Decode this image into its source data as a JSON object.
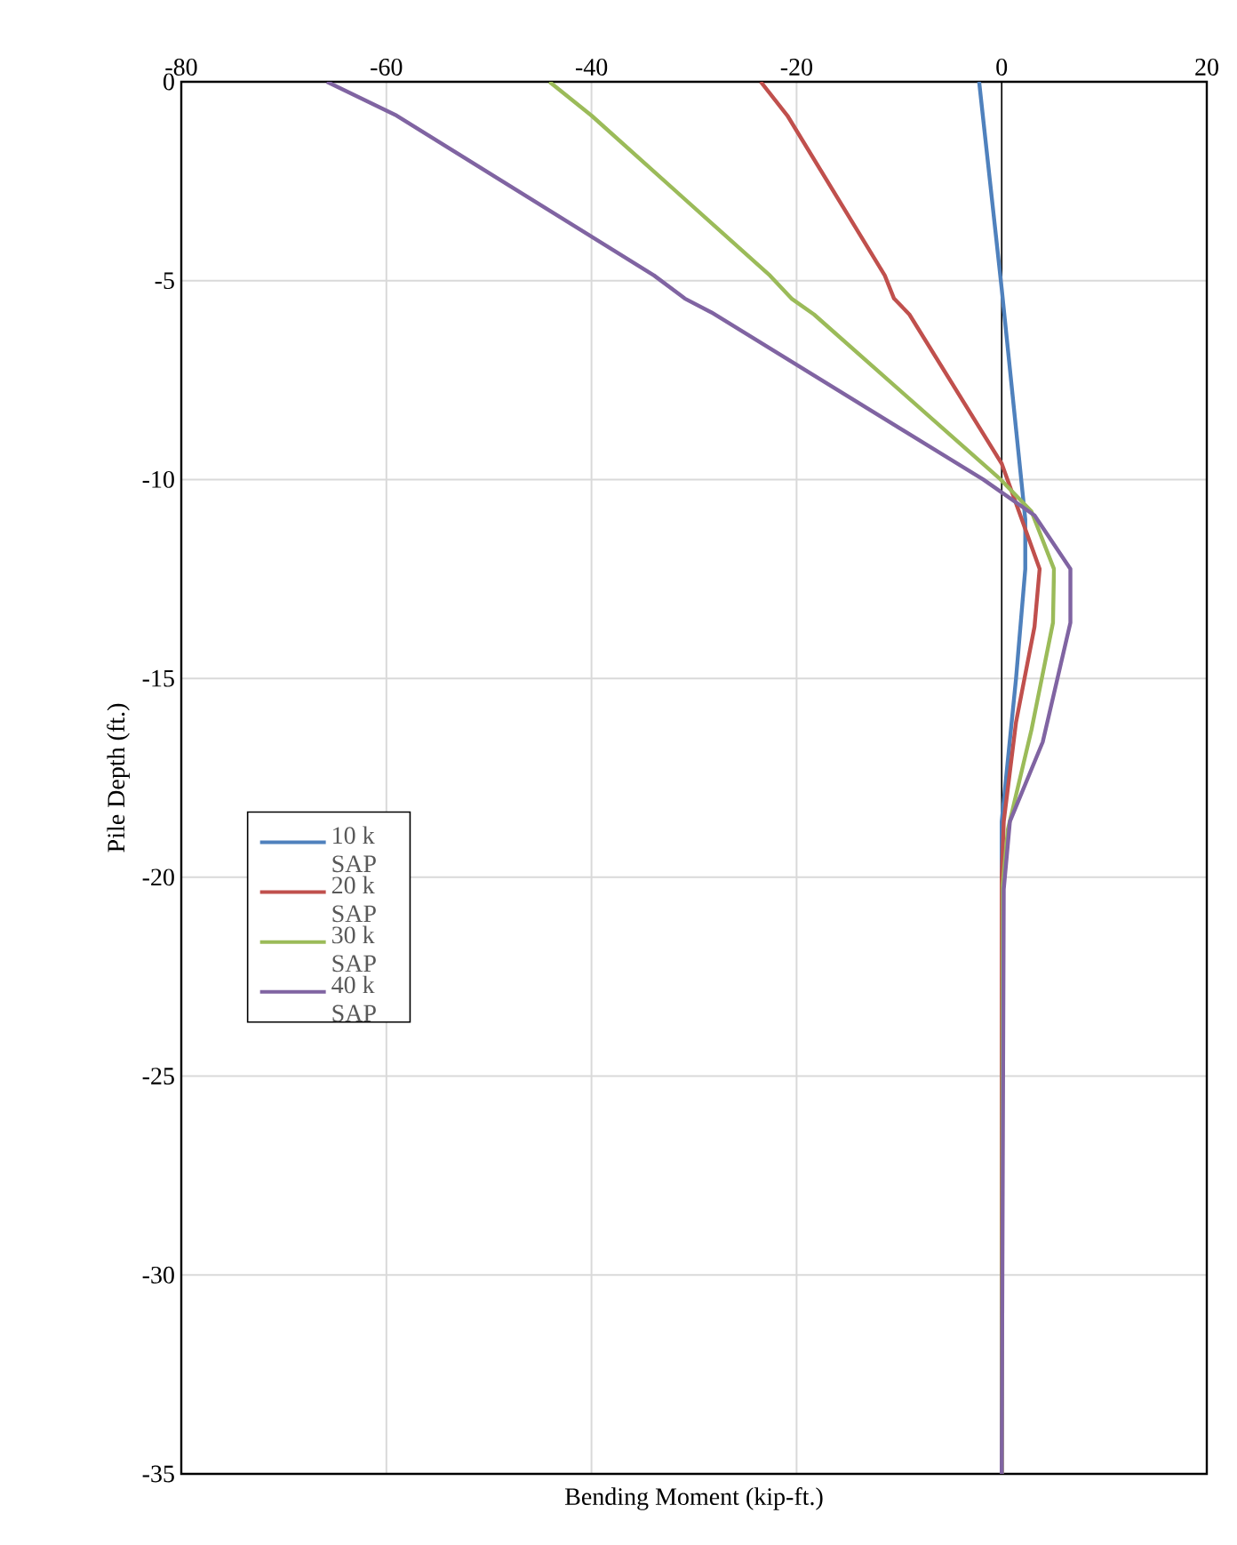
{
  "chart_data": {
    "type": "line",
    "xlabel": "Bending Moment (kip-ft.)",
    "ylabel": "Pile Depth (ft.)",
    "xlim": [
      -80,
      20
    ],
    "xticks": [
      -80,
      -60,
      -40,
      -20,
      0,
      20
    ],
    "ylim": [
      -35,
      0
    ],
    "yticks": [
      -35,
      -30,
      -25,
      -20,
      -15,
      -10,
      -5,
      0
    ],
    "grid": true,
    "legend": "center left",
    "ref_lines": [
      {
        "axis": "x",
        "value": 0,
        "color": "#000000"
      }
    ],
    "series": [
      {
        "name": "10 k SAP",
        "color": "#4f81bd",
        "x": [
          -2.2,
          0,
          2.3,
          2.3,
          1.4,
          0,
          0
        ],
        "values": [
          0,
          -5.2,
          -11,
          -12.25,
          -15,
          -18.6,
          -35
        ]
      },
      {
        "name": "20 k SAP",
        "color": "#c0504d",
        "x": [
          -23.5,
          -20.9,
          -11.4,
          -10.5,
          -9,
          0,
          3.7,
          3.2,
          1.4,
          0.2,
          0,
          0
        ],
        "values": [
          0,
          -0.85,
          -4.87,
          -5.45,
          -5.85,
          -9.6,
          -12.25,
          -13.7,
          -16.1,
          -18.6,
          -20,
          -35
        ]
      },
      {
        "name": "30 k SAP",
        "color": "#9bbb59",
        "x": [
          -44.1,
          -40,
          -22.6,
          -20.5,
          -18.3,
          -0.1,
          2.9,
          5.1,
          5,
          2.9,
          0.6,
          0.1,
          0
        ],
        "values": [
          0,
          -0.85,
          -4.87,
          -5.45,
          -5.85,
          -10,
          -10.8,
          -12.25,
          -13.6,
          -16.3,
          -18.8,
          -20.2,
          -35
        ]
      },
      {
        "name": "40 k SAP",
        "color": "#8064a2",
        "x": [
          -65.8,
          -59,
          -33.9,
          -30.9,
          -28.3,
          -1.8,
          3.2,
          6.7,
          6.7,
          4,
          0.8,
          0.2,
          0
        ],
        "values": [
          0,
          -0.85,
          -4.87,
          -5.45,
          -5.8,
          -10,
          -10.9,
          -12.25,
          -13.6,
          -16.6,
          -18.6,
          -20.3,
          -35
        ]
      }
    ]
  }
}
